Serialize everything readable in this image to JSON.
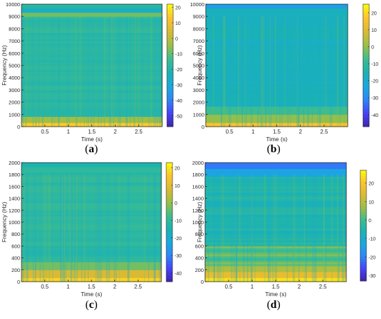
{
  "figure": {
    "captions": [
      "a",
      "b",
      "c",
      "d"
    ]
  },
  "colormap": [
    "#3e26a8",
    "#4743f8",
    "#2e87f7",
    "#1aa9df",
    "#1ab2b2",
    "#3ebd8e",
    "#9bbf46",
    "#d9ba34",
    "#fdc32d",
    "#f9fb0e"
  ],
  "chart_data": [
    {
      "type": "heatmap",
      "panel": "a",
      "xlabel": "Time (s)",
      "ylabel": "Frequency (Hz)",
      "xlim": [
        0,
        3.0
      ],
      "ylim": [
        0,
        10000
      ],
      "xticks": [
        0.5,
        1,
        1.5,
        2,
        2.5
      ],
      "xtick_labels": [
        "0.5",
        "1",
        "1.5",
        "2",
        "2.5"
      ],
      "yticks": [
        0,
        1000,
        2000,
        3000,
        4000,
        5000,
        6000,
        7000,
        8000,
        9000,
        10000
      ],
      "ytick_labels": [
        "0",
        "1000",
        "2000",
        "3000",
        "4000",
        "5000",
        "6000",
        "7000",
        "8000",
        "9000",
        "10000"
      ],
      "colorbar": {
        "range": [
          -57,
          22
        ],
        "ticks": [
          20,
          10,
          0,
          -10,
          -20,
          -30,
          -40,
          -50
        ],
        "tick_labels": [
          "20",
          "10",
          "0",
          "-10",
          "-20",
          "-30",
          "-40",
          "-50"
        ]
      }
    },
    {
      "type": "heatmap",
      "panel": "b",
      "xlabel": "Time (s)",
      "ylabel": "Frequency (Hz)",
      "xlim": [
        0,
        3.0
      ],
      "ylim": [
        0,
        10000
      ],
      "xticks": [
        0.5,
        1,
        1.5,
        2,
        2.5
      ],
      "xtick_labels": [
        "0.5",
        "1",
        "1.5",
        "2",
        "2.5"
      ],
      "yticks": [
        0,
        1000,
        2000,
        3000,
        4000,
        5000,
        6000,
        7000,
        8000,
        9000,
        10000
      ],
      "ytick_labels": [
        "0",
        "1000",
        "2000",
        "3000",
        "4000",
        "5000",
        "6000",
        "7000",
        "8000",
        "9000",
        "10000"
      ],
      "colorbar": {
        "range": [
          -47,
          25
        ],
        "ticks": [
          20,
          10,
          0,
          -10,
          -20,
          -30,
          -40
        ],
        "tick_labels": [
          "20",
          "10",
          "0",
          "-10",
          "-20",
          "-30",
          "-40"
        ]
      }
    },
    {
      "type": "heatmap",
      "panel": "c",
      "xlabel": "Time (s)",
      "ylabel": "Frequency (Hz)",
      "xlim": [
        0,
        3.0
      ],
      "ylim": [
        0,
        2000
      ],
      "xticks": [
        0.5,
        1,
        1.5,
        2,
        2.5
      ],
      "xtick_labels": [
        "0.5",
        "1",
        "1.5",
        "2",
        "2.5"
      ],
      "yticks": [
        0,
        200,
        400,
        600,
        800,
        1000,
        1200,
        1400,
        1600,
        1800,
        2000
      ],
      "ytick_labels": [
        "0",
        "200",
        "400",
        "600",
        "800",
        "1000",
        "1200",
        "1400",
        "1600",
        "1800",
        "2000"
      ],
      "colorbar": {
        "range": [
          -45,
          23
        ],
        "ticks": [
          20,
          10,
          0,
          -10,
          -20,
          -30,
          -40
        ],
        "tick_labels": [
          "20",
          "10",
          "0",
          "-10",
          "-20",
          "-30",
          "-40"
        ]
      }
    },
    {
      "type": "heatmap",
      "panel": "d",
      "xlabel": "Time (s)",
      "ylabel": "Frequency (Hz)",
      "xlim": [
        0,
        3.0
      ],
      "ylim": [
        0,
        2000
      ],
      "xticks": [
        0.5,
        1,
        1.5,
        2,
        2.5
      ],
      "xtick_labels": [
        "0.5",
        "1",
        "1.5",
        "2",
        "2.5"
      ],
      "yticks": [
        0,
        200,
        400,
        600,
        800,
        1000,
        1200,
        1400,
        1600,
        1800,
        2000
      ],
      "ytick_labels": [
        "0",
        "200",
        "400",
        "600",
        "800",
        "1000",
        "1200",
        "1400",
        "1600",
        "1800",
        "2000"
      ],
      "colorbar": {
        "range": [
          -33,
          27
        ],
        "ticks": [
          20,
          10,
          0,
          -10,
          -20,
          -30
        ],
        "tick_labels": [
          "20",
          "10",
          "0",
          "-10",
          "-20",
          "-30"
        ]
      }
    }
  ]
}
